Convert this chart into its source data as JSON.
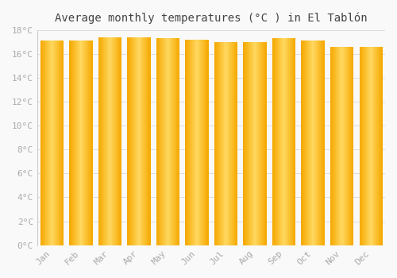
{
  "title": "Average monthly temperatures (°C ) in El Tablón",
  "months": [
    "Jan",
    "Feb",
    "Mar",
    "Apr",
    "May",
    "Jun",
    "Jul",
    "Aug",
    "Sep",
    "Oct",
    "Nov",
    "Dec"
  ],
  "temperatures": [
    17.1,
    17.1,
    17.4,
    17.4,
    17.3,
    17.2,
    17.0,
    17.0,
    17.3,
    17.1,
    16.6,
    16.6
  ],
  "bar_color_edge": "#F5A800",
  "bar_color_center": "#FFD860",
  "ylim": [
    0,
    18
  ],
  "yticks": [
    0,
    2,
    4,
    6,
    8,
    10,
    12,
    14,
    16,
    18
  ],
  "ytick_labels": [
    "0°C",
    "2°C",
    "4°C",
    "6°C",
    "8°C",
    "10°C",
    "12°C",
    "14°C",
    "16°C",
    "18°C"
  ],
  "grid_color": "#dddddd",
  "background_color": "#f9f9f9",
  "title_fontsize": 10,
  "tick_fontsize": 8,
  "tick_color": "#aaaaaa",
  "bar_width": 0.78,
  "n_gradient_slices": 40
}
